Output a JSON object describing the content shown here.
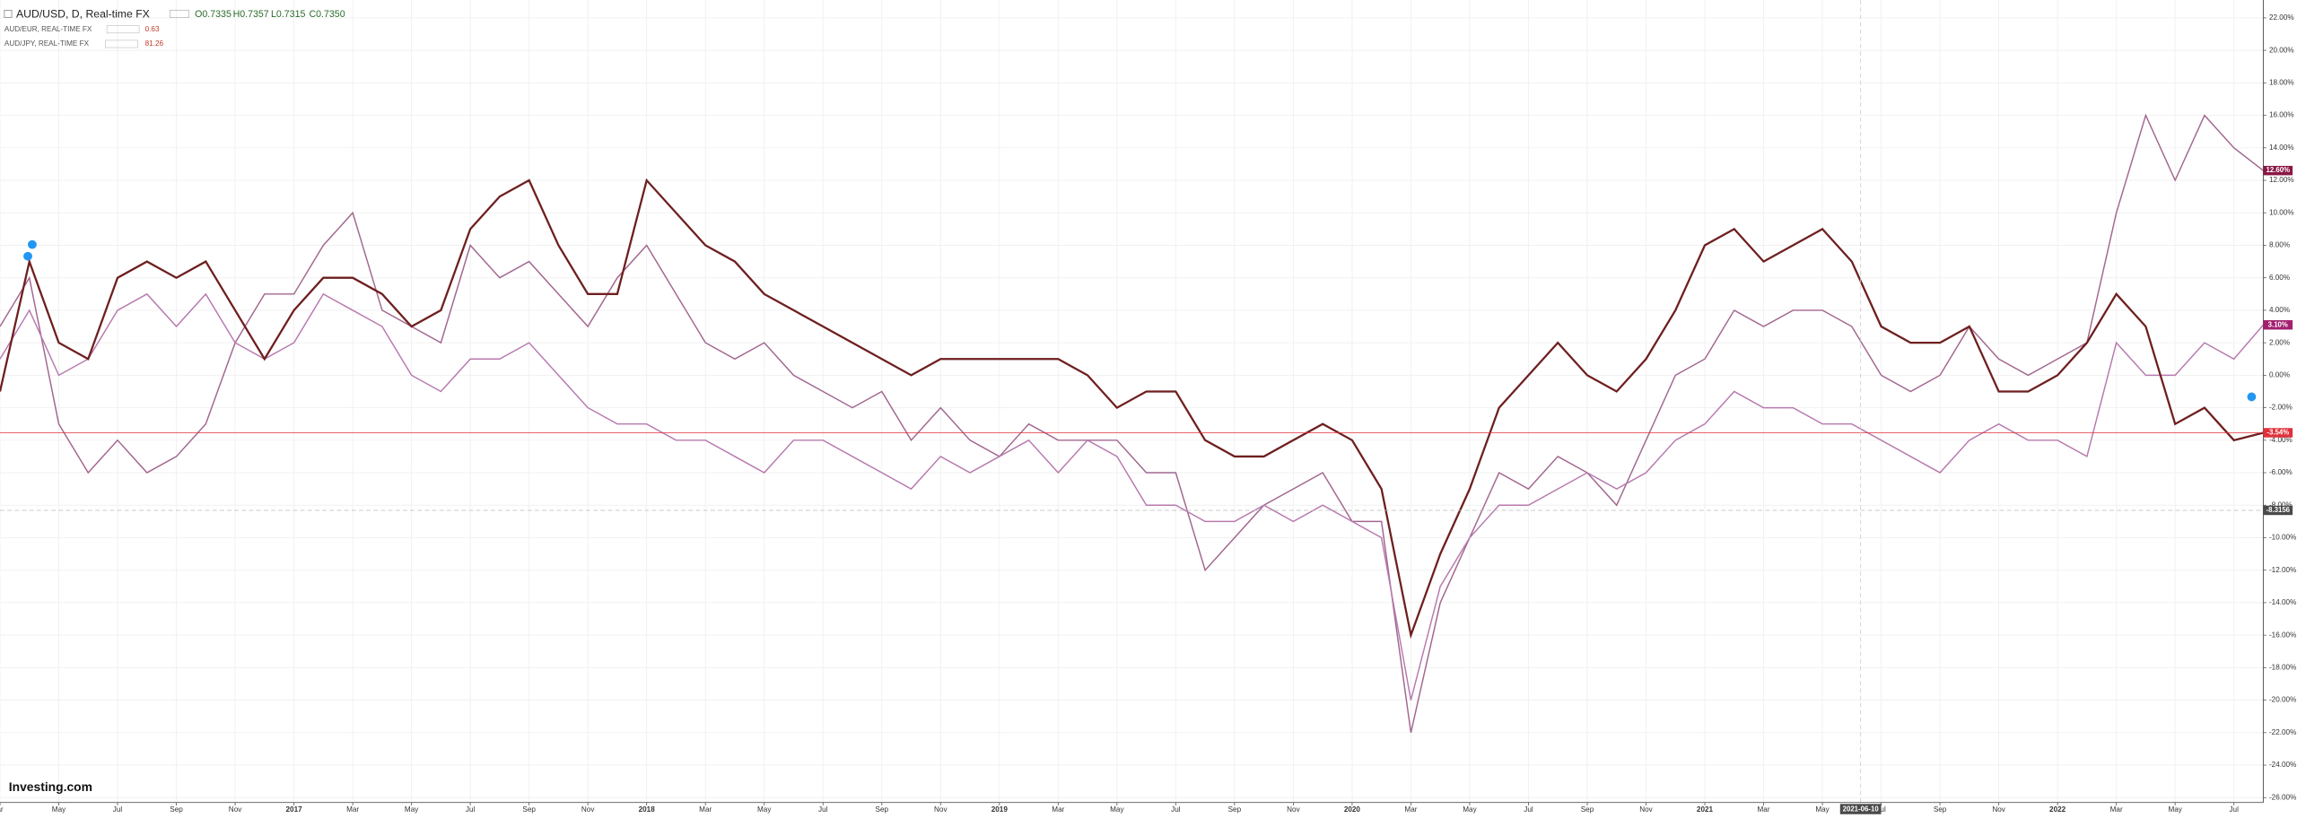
{
  "chart_data": {
    "type": "line",
    "title": "AUD/USD, D, Real-time FX",
    "ohlc": [
      "O0.7335",
      "H0.7357",
      "L0.7315",
      "C0.7350"
    ],
    "logo": "Investing.com",
    "x": [
      "2016-03",
      "2016-04",
      "2016-05",
      "2016-06",
      "2016-07",
      "2016-08",
      "2016-09",
      "2016-10",
      "2016-11",
      "2016-12",
      "2017-01",
      "2017-02",
      "2017-03",
      "2017-04",
      "2017-05",
      "2017-06",
      "2017-07",
      "2017-08",
      "2017-09",
      "2017-10",
      "2017-11",
      "2017-12",
      "2018-01",
      "2018-02",
      "2018-03",
      "2018-04",
      "2018-05",
      "2018-06",
      "2018-07",
      "2018-08",
      "2018-09",
      "2018-10",
      "2018-11",
      "2018-12",
      "2019-01",
      "2019-02",
      "2019-03",
      "2019-04",
      "2019-05",
      "2019-06",
      "2019-07",
      "2019-08",
      "2019-09",
      "2019-10",
      "2019-11",
      "2019-12",
      "2020-01",
      "2020-02",
      "2020-03",
      "2020-04",
      "2020-05",
      "2020-06",
      "2020-07",
      "2020-08",
      "2020-09",
      "2020-10",
      "2020-11",
      "2020-12",
      "2021-01",
      "2021-02",
      "2021-03",
      "2021-04",
      "2021-05",
      "2021-06",
      "2021-07",
      "2021-08",
      "2021-09",
      "2021-10",
      "2021-11",
      "2021-12",
      "2022-01",
      "2022-02",
      "2022-03",
      "2022-04",
      "2022-05",
      "2022-06",
      "2022-07",
      "2022-08"
    ],
    "series": [
      {
        "name": "AUD/USD",
        "color": "#6e1f1f",
        "last_label": "-3.54%",
        "badge_color": "#e0313b",
        "values": [
          -1,
          7,
          2,
          1,
          6,
          7,
          6,
          7,
          4,
          1,
          4,
          6,
          6,
          5,
          3,
          4,
          9,
          11,
          12,
          8,
          5,
          5,
          12,
          10,
          8,
          7,
          5,
          4,
          3,
          2,
          1,
          0,
          1,
          1,
          1,
          1,
          1,
          0,
          -2,
          -1,
          -1,
          -4,
          -5,
          -5,
          -4,
          -3,
          -4,
          -7,
          -16,
          -11,
          -7,
          -2,
          0,
          2,
          0,
          -1,
          1,
          4,
          8,
          9,
          7,
          8,
          9,
          7,
          3,
          2,
          2,
          3,
          -1,
          -1,
          0,
          2,
          5,
          3,
          -3,
          -2,
          -4,
          -3.54
        ]
      },
      {
        "name": "AUD/EUR, REAL-TIME FX",
        "legend_value": "0.63",
        "color": "#b77aae",
        "last_label": "3.10%",
        "badge_color": "#a3206f",
        "values": [
          1,
          4,
          0,
          1,
          4,
          5,
          3,
          5,
          2,
          1,
          2,
          5,
          4,
          3,
          0,
          -1,
          1,
          1,
          2,
          0,
          -2,
          -3,
          -3,
          -4,
          -4,
          -5,
          -6,
          -4,
          -4,
          -5,
          -6,
          -7,
          -5,
          -6,
          -5,
          -4,
          -6,
          -4,
          -5,
          -8,
          -8,
          -9,
          -9,
          -8,
          -9,
          -8,
          -9,
          -10,
          -20,
          -13,
          -10,
          -8,
          -8,
          -7,
          -6,
          -7,
          -6,
          -4,
          -3,
          -1,
          -2,
          -2,
          -3,
          -3,
          -4,
          -5,
          -6,
          -4,
          -3,
          -4,
          -4,
          -5,
          2,
          0,
          0,
          2,
          1,
          3.1
        ]
      },
      {
        "name": "AUD/JPY, REAL-TIME FX",
        "legend_value": "81.26",
        "color": "#a2678f",
        "last_label": "12.60%",
        "badge_color": "#8a1846",
        "values": [
          3,
          6,
          -3,
          -6,
          -4,
          -6,
          -5,
          -3,
          2,
          5,
          5,
          8,
          10,
          4,
          3,
          2,
          8,
          6,
          7,
          5,
          3,
          6,
          8,
          5,
          2,
          1,
          2,
          0,
          -1,
          -2,
          -1,
          -4,
          -2,
          -4,
          -5,
          -3,
          -4,
          -4,
          -4,
          -6,
          -6,
          -12,
          -10,
          -8,
          -7,
          -6,
          -9,
          -9,
          -22,
          -14,
          -10,
          -6,
          -7,
          -5,
          -6,
          -8,
          -4,
          0,
          1,
          4,
          3,
          4,
          4,
          3,
          0,
          -1,
          0,
          3,
          1,
          0,
          1,
          2,
          10,
          16,
          12,
          16,
          14,
          12.6
        ]
      }
    ],
    "crosshair": {
      "x": "2021-06-10",
      "y": -8.3156
    },
    "xlim": [
      "2016-03",
      "2022-08"
    ],
    "xticks": [
      {
        "value": "2016-03",
        "label": "ar"
      },
      {
        "value": "2016-05",
        "label": "May"
      },
      {
        "value": "2016-07",
        "label": "Jul"
      },
      {
        "value": "2016-09",
        "label": "Sep"
      },
      {
        "value": "2016-11",
        "label": "Nov"
      },
      {
        "value": "2017-01",
        "label": "2017"
      },
      {
        "value": "2017-03",
        "label": "Mar"
      },
      {
        "value": "2017-05",
        "label": "May"
      },
      {
        "value": "2017-07",
        "label": "Jul"
      },
      {
        "value": "2017-09",
        "label": "Sep"
      },
      {
        "value": "2017-11",
        "label": "Nov"
      },
      {
        "value": "2018-01",
        "label": "2018"
      },
      {
        "value": "2018-03",
        "label": "Mar"
      },
      {
        "value": "2018-05",
        "label": "May"
      },
      {
        "value": "2018-07",
        "label": "Jul"
      },
      {
        "value": "2018-09",
        "label": "Sep"
      },
      {
        "value": "2018-11",
        "label": "Nov"
      },
      {
        "value": "2019-01",
        "label": "2019"
      },
      {
        "value": "2019-03",
        "label": "Mar"
      },
      {
        "value": "2019-05",
        "label": "May"
      },
      {
        "value": "2019-07",
        "label": "Jul"
      },
      {
        "value": "2019-09",
        "label": "Sep"
      },
      {
        "value": "2019-11",
        "label": "Nov"
      },
      {
        "value": "2020-01",
        "label": "2020"
      },
      {
        "value": "2020-03",
        "label": "Mar"
      },
      {
        "value": "2020-05",
        "label": "May"
      },
      {
        "value": "2020-07",
        "label": "Jul"
      },
      {
        "value": "2020-09",
        "label": "Sep"
      },
      {
        "value": "2020-11",
        "label": "Nov"
      },
      {
        "value": "2021-01",
        "label": "2021"
      },
      {
        "value": "2021-03",
        "label": "Mar"
      },
      {
        "value": "2021-05",
        "label": "May"
      },
      {
        "value": "2021-07",
        "label": "Jul"
      },
      {
        "value": "2021-09",
        "label": "Sep"
      },
      {
        "value": "2021-11",
        "label": "Nov"
      },
      {
        "value": "2022-01",
        "label": "2022"
      },
      {
        "value": "2022-03",
        "label": "Mar"
      },
      {
        "value": "2022-05",
        "label": "May"
      },
      {
        "value": "2022-07",
        "label": "Jul"
      }
    ],
    "ylim": [
      -26.3,
      23.1
    ],
    "yticks": [
      {
        "value": 22,
        "label": "22.00%"
      },
      {
        "value": 20,
        "label": "20.00%"
      },
      {
        "value": 18,
        "label": "18.00%"
      },
      {
        "value": 16,
        "label": "16.00%"
      },
      {
        "value": 14,
        "label": "14.00%"
      },
      {
        "value": 12,
        "label": "12.00%"
      },
      {
        "value": 10,
        "label": "10.00%"
      },
      {
        "value": 8,
        "label": "8.00%"
      },
      {
        "value": 6,
        "label": "6.00%"
      },
      {
        "value": 4,
        "label": "4.00%"
      },
      {
        "value": 2,
        "label": "2.00%"
      },
      {
        "value": 0,
        "label": "0.00%"
      },
      {
        "value": -2,
        "label": "-2.00%"
      },
      {
        "value": -4,
        "label": "-4.00%"
      },
      {
        "value": -6,
        "label": "-6.00%"
      },
      {
        "value": -8,
        "label": "-8.00%"
      },
      {
        "value": -10,
        "label": "-10.00%"
      },
      {
        "value": -12,
        "label": "-12.00%"
      },
      {
        "value": -14,
        "label": "-14.00%"
      },
      {
        "value": -16,
        "label": "-16.00%"
      },
      {
        "value": -18,
        "label": "-18.00%"
      },
      {
        "value": -20,
        "label": "-20.00%"
      },
      {
        "value": -22,
        "label": "-22.00%"
      },
      {
        "value": -24,
        "label": "-24.00%"
      },
      {
        "value": -26,
        "label": "-26.00%"
      }
    ],
    "grid": true
  }
}
